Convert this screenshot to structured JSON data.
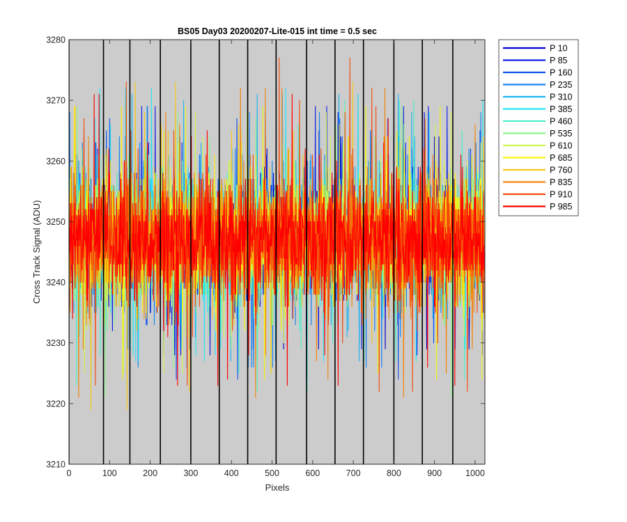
{
  "chart_data": {
    "type": "line",
    "title": "BS05 Day03 20200207-Lite-015 int time = 0.5 sec",
    "xlabel": "Pixels",
    "ylabel": "Cross Track Signal (ADU)",
    "xlim": [
      0,
      1024
    ],
    "ylim": [
      3210,
      3280
    ],
    "xticks": [
      0,
      100,
      200,
      300,
      400,
      500,
      600,
      700,
      800,
      900,
      1000
    ],
    "yticks": [
      3210,
      3220,
      3230,
      3240,
      3250,
      3260,
      3270,
      3280
    ],
    "background": "#cccccc",
    "grid": false,
    "vertical_markers": [
      0,
      85,
      150,
      225,
      300,
      370,
      440,
      510,
      585,
      655,
      725,
      800,
      870,
      945
    ],
    "legend_position": "outside-top-right",
    "noise": {
      "mean": 3247,
      "core_sd": 4.5,
      "typical_min": 3222,
      "typical_max": 3272,
      "points_per_series": 1024
    },
    "series": [
      {
        "name": "P 10",
        "color": "#0000d0",
        "min": 3229,
        "max": 3268
      },
      {
        "name": "P 85",
        "color": "#0a1ee6",
        "min": 3228,
        "max": 3269
      },
      {
        "name": "P 160",
        "color": "#0a50f0",
        "min": 3224,
        "max": 3267
      },
      {
        "name": "P 235",
        "color": "#1482f0",
        "min": 3226,
        "max": 3268
      },
      {
        "name": "P 310",
        "color": "#1eb4f0",
        "min": 3227,
        "max": 3271
      },
      {
        "name": "P 385",
        "color": "#23e6f5",
        "min": 3227,
        "max": 3272
      },
      {
        "name": "P 460",
        "color": "#4df0c8",
        "min": 3222,
        "max": 3270
      },
      {
        "name": "P 535",
        "color": "#8cf58c",
        "min": 3221,
        "max": 3269
      },
      {
        "name": "P 610",
        "color": "#d2f550",
        "min": 3225,
        "max": 3268
      },
      {
        "name": "P 685",
        "color": "#f5f50a",
        "min": 3224,
        "max": 3269
      },
      {
        "name": "P 760",
        "color": "#f5c814",
        "min": 3219,
        "max": 3273
      },
      {
        "name": "P 835",
        "color": "#f5820a",
        "min": 3221,
        "max": 3272
      },
      {
        "name": "P 910",
        "color": "#f54a0a",
        "min": 3222,
        "max": 3277
      },
      {
        "name": "P 985",
        "color": "#ff0000",
        "min": 3223,
        "max": 3271
      }
    ]
  }
}
